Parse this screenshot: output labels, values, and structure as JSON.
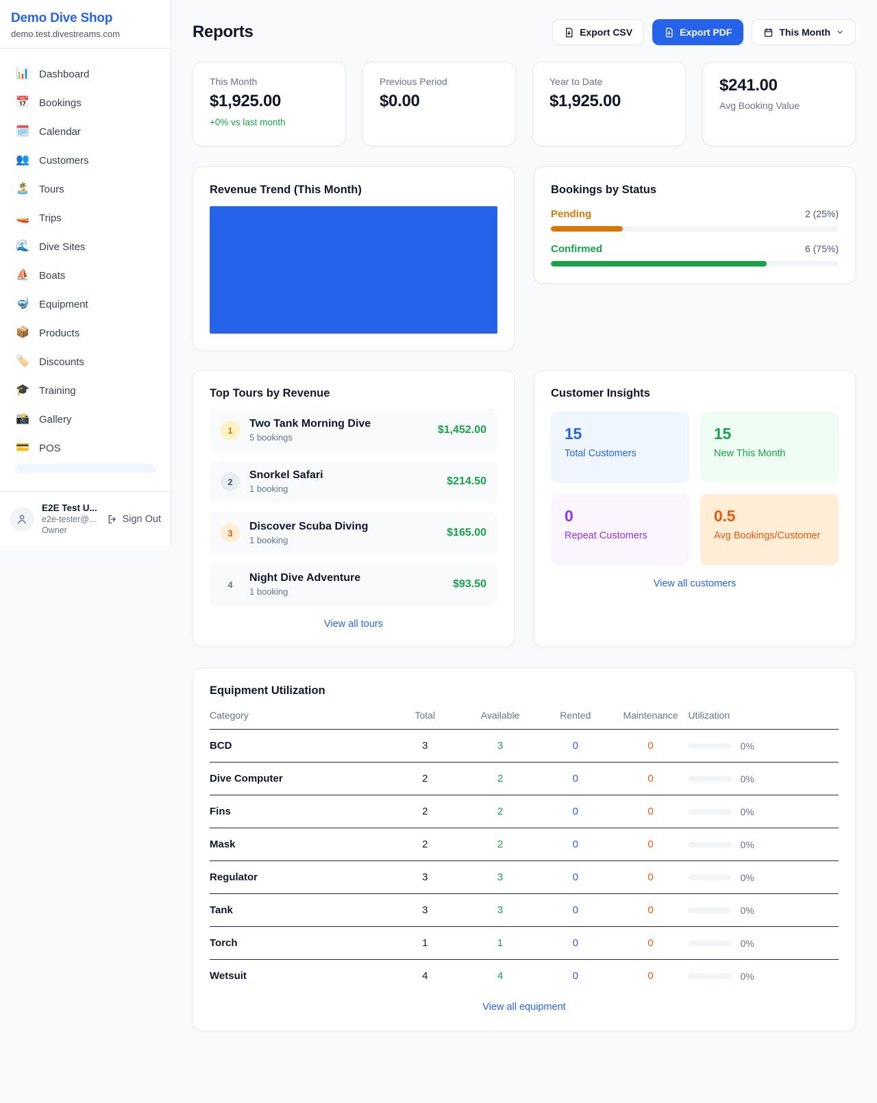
{
  "colors": {
    "accent_blue": "#2563eb",
    "green": "#16a34a",
    "amber": "#d97706",
    "orange": "#ea580c",
    "purple": "#9333ea",
    "muted_text": "#64748b",
    "dark_text": "#0f172a",
    "page_bg": "#f8fafc",
    "border": "#e2e8f0"
  },
  "sidebar": {
    "shop_name": "Demo Dive Shop",
    "domain": "demo.test.divestreams.com",
    "items": [
      {
        "icon": "📊",
        "label": "Dashboard"
      },
      {
        "icon": "📅",
        "label": "Bookings"
      },
      {
        "icon": "🗓️",
        "label": "Calendar"
      },
      {
        "icon": "👥",
        "label": "Customers"
      },
      {
        "icon": "🏝️",
        "label": "Tours"
      },
      {
        "icon": "🚤",
        "label": "Trips"
      },
      {
        "icon": "🌊",
        "label": "Dive Sites"
      },
      {
        "icon": "⛵",
        "label": "Boats"
      },
      {
        "icon": "🤿",
        "label": "Equipment"
      },
      {
        "icon": "📦",
        "label": "Products"
      },
      {
        "icon": "🏷️",
        "label": "Discounts"
      },
      {
        "icon": "🎓",
        "label": "Training"
      },
      {
        "icon": "📸",
        "label": "Gallery"
      },
      {
        "icon": "💳",
        "label": "POS"
      }
    ],
    "user": {
      "name": "E2E Test U...",
      "email": "e2e-tester@...",
      "role": "Owner",
      "sign_out": "Sign Out"
    }
  },
  "header": {
    "title": "Reports",
    "export_csv": "Export CSV",
    "export_pdf": "Export PDF",
    "period": "This Month"
  },
  "stats": {
    "cards": [
      {
        "label": "This Month",
        "value": "$1,925.00",
        "delta": "+0% vs last month"
      },
      {
        "label": "Previous Period",
        "value": "$0.00"
      },
      {
        "label": "Year to Date",
        "value": "$1,925.00"
      },
      {
        "label": "Avg Booking Value",
        "value": "$241.00"
      }
    ]
  },
  "revenue_trend": {
    "title": "Revenue Trend (This Month)"
  },
  "chart_data": {
    "type": "bar",
    "title": "Revenue Trend (This Month)",
    "categories": [
      "This Month"
    ],
    "values": [
      1925
    ],
    "color": "#2563eb",
    "axes_visible": false
  },
  "bookings_by_status": {
    "title": "Bookings by Status",
    "rows": [
      {
        "label": "Pending",
        "count": "2 (25%)",
        "pct": "25%"
      },
      {
        "label": "Confirmed",
        "count": "6 (75%)",
        "pct": "75%"
      }
    ]
  },
  "top_tours": {
    "title": "Top Tours by Revenue",
    "rows": [
      {
        "rank": "1",
        "name": "Two Tank Morning Dive",
        "bookings": "5 bookings",
        "amount": "$1,452.00"
      },
      {
        "rank": "2",
        "name": "Snorkel Safari",
        "bookings": "1 booking",
        "amount": "$214.50"
      },
      {
        "rank": "3",
        "name": "Discover Scuba Diving",
        "bookings": "1 booking",
        "amount": "$165.00"
      },
      {
        "rank": "4",
        "name": "Night Dive Adventure",
        "bookings": "1 booking",
        "amount": "$93.50"
      }
    ],
    "link": "View all tours"
  },
  "customer_insights": {
    "title": "Customer Insights",
    "tiles": [
      {
        "value": "15",
        "label": "Total Customers"
      },
      {
        "value": "15",
        "label": "New This Month"
      },
      {
        "value": "0",
        "label": "Repeat Customers"
      },
      {
        "value": "0.5",
        "label": "Avg Bookings/Customer"
      }
    ],
    "link": "View all customers"
  },
  "equipment": {
    "title": "Equipment Utilization",
    "columns": [
      "Category",
      "Total",
      "Available",
      "Rented",
      "Maintenance",
      "Utilization"
    ],
    "rows": [
      {
        "category": "BCD",
        "total": "3",
        "available": "3",
        "rented": "0",
        "maintenance": "0",
        "utilization": "0%"
      },
      {
        "category": "Dive Computer",
        "total": "2",
        "available": "2",
        "rented": "0",
        "maintenance": "0",
        "utilization": "0%"
      },
      {
        "category": "Fins",
        "total": "2",
        "available": "2",
        "rented": "0",
        "maintenance": "0",
        "utilization": "0%"
      },
      {
        "category": "Mask",
        "total": "2",
        "available": "2",
        "rented": "0",
        "maintenance": "0",
        "utilization": "0%"
      },
      {
        "category": "Regulator",
        "total": "3",
        "available": "3",
        "rented": "0",
        "maintenance": "0",
        "utilization": "0%"
      },
      {
        "category": "Tank",
        "total": "3",
        "available": "3",
        "rented": "0",
        "maintenance": "0",
        "utilization": "0%"
      },
      {
        "category": "Torch",
        "total": "1",
        "available": "1",
        "rented": "0",
        "maintenance": "0",
        "utilization": "0%"
      },
      {
        "category": "Wetsuit",
        "total": "4",
        "available": "4",
        "rented": "0",
        "maintenance": "0",
        "utilization": "0%"
      }
    ],
    "link": "View all equipment"
  }
}
